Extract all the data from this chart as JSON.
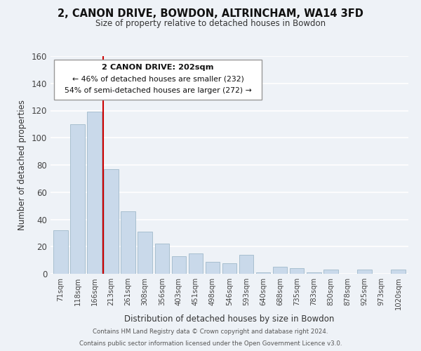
{
  "title": "2, CANON DRIVE, BOWDON, ALTRINCHAM, WA14 3FD",
  "subtitle": "Size of property relative to detached houses in Bowdon",
  "xlabel": "Distribution of detached houses by size in Bowdon",
  "ylabel": "Number of detached properties",
  "categories": [
    "71sqm",
    "118sqm",
    "166sqm",
    "213sqm",
    "261sqm",
    "308sqm",
    "356sqm",
    "403sqm",
    "451sqm",
    "498sqm",
    "546sqm",
    "593sqm",
    "640sqm",
    "688sqm",
    "735sqm",
    "783sqm",
    "830sqm",
    "878sqm",
    "925sqm",
    "973sqm",
    "1020sqm"
  ],
  "values": [
    32,
    110,
    119,
    77,
    46,
    31,
    22,
    13,
    15,
    9,
    8,
    14,
    1,
    5,
    4,
    1,
    3,
    0,
    3,
    0,
    3
  ],
  "bar_color": "#c9d9ea",
  "bar_edge_color": "#a8bfcf",
  "vline_x_index": 3,
  "vline_color": "#cc0000",
  "annotation_title": "2 CANON DRIVE: 202sqm",
  "annotation_line1": "← 46% of detached houses are smaller (232)",
  "annotation_line2": "54% of semi-detached houses are larger (272) →",
  "annotation_box_color": "#ffffff",
  "annotation_box_edge": "#999999",
  "ylim": [
    0,
    160
  ],
  "yticks": [
    0,
    20,
    40,
    60,
    80,
    100,
    120,
    140,
    160
  ],
  "footer1": "Contains HM Land Registry data © Crown copyright and database right 2024.",
  "footer2": "Contains public sector information licensed under the Open Government Licence v3.0.",
  "background_color": "#eef2f7",
  "grid_color": "#ffffff",
  "title_fontsize": 10.5,
  "subtitle_fontsize": 8.5
}
